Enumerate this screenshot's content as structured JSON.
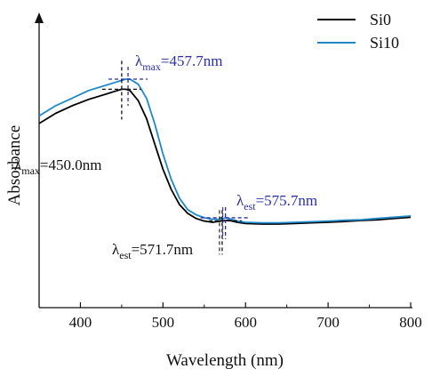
{
  "chart_data": {
    "type": "line",
    "xlabel": "Wavelength (nm)",
    "ylabel": "Absorbance",
    "xlim": [
      350,
      800
    ],
    "ylim": [
      0,
      1
    ],
    "xticks": [
      400,
      500,
      600,
      700,
      800
    ],
    "grid": false,
    "legend_position": "top-right",
    "series": [
      {
        "name": "Si0",
        "color": "#000000",
        "x": [
          350,
          370,
          390,
          410,
          430,
          440,
          450,
          455,
          460,
          470,
          480,
          490,
          500,
          510,
          520,
          530,
          540,
          550,
          560,
          570,
          580,
          590,
          600,
          620,
          640,
          660,
          680,
          700,
          720,
          740,
          760,
          780,
          800
        ],
        "y": [
          0.64,
          0.68,
          0.71,
          0.735,
          0.755,
          0.765,
          0.775,
          0.775,
          0.77,
          0.73,
          0.66,
          0.56,
          0.46,
          0.38,
          0.32,
          0.285,
          0.265,
          0.255,
          0.25,
          0.255,
          0.258,
          0.25,
          0.245,
          0.243,
          0.243,
          0.245,
          0.248,
          0.25,
          0.253,
          0.257,
          0.26,
          0.265,
          0.27
        ]
      },
      {
        "name": "Si10",
        "color": "#1e88c8",
        "x": [
          350,
          370,
          390,
          410,
          430,
          440,
          450,
          455,
          460,
          470,
          480,
          490,
          500,
          510,
          520,
          530,
          540,
          550,
          560,
          570,
          576,
          580,
          590,
          600,
          620,
          640,
          660,
          680,
          700,
          720,
          740,
          760,
          780,
          800
        ],
        "y": [
          0.67,
          0.71,
          0.74,
          0.77,
          0.79,
          0.8,
          0.81,
          0.815,
          0.815,
          0.795,
          0.74,
          0.64,
          0.52,
          0.42,
          0.345,
          0.3,
          0.28,
          0.268,
          0.262,
          0.262,
          0.268,
          0.265,
          0.255,
          0.25,
          0.248,
          0.248,
          0.25,
          0.252,
          0.255,
          0.258,
          0.26,
          0.265,
          0.27,
          0.275
        ]
      }
    ],
    "annotations": [
      {
        "id": "lmax-si10",
        "symbol": "λ",
        "sub": "max",
        "text": "=457.7nm",
        "x": 457.7,
        "series": "Si10",
        "color": "#2b2fa8"
      },
      {
        "id": "lmax-si0",
        "symbol": "λ",
        "sub": "max",
        "text": "=450.0nm",
        "x": 450.0,
        "series": "Si0",
        "color": "#111111"
      },
      {
        "id": "lest-si10",
        "symbol": "λ",
        "sub": "est",
        "text": "=575.7nm",
        "x": 575.7,
        "series": "Si10",
        "color": "#2b2fa8"
      },
      {
        "id": "lest-si0",
        "symbol": "λ",
        "sub": "est",
        "text": "=571.7nm",
        "x": 571.7,
        "series": "Si0",
        "color": "#111111"
      }
    ]
  }
}
